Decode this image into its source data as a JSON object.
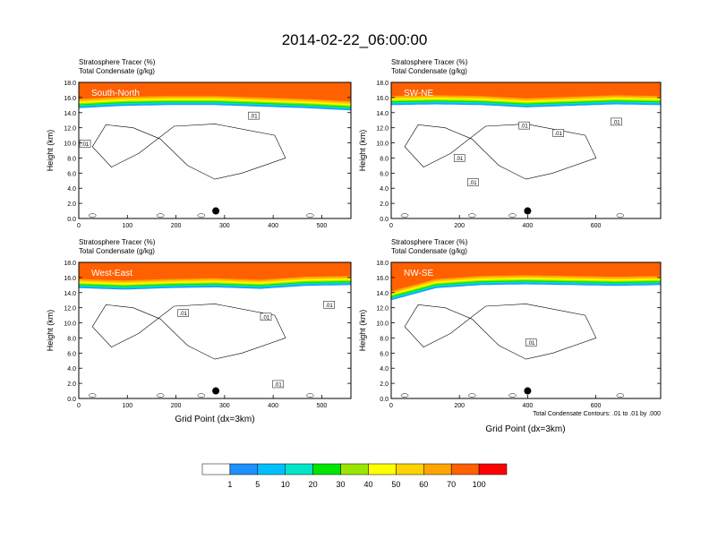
{
  "figure": {
    "title": "2014-02-22_06:00:00",
    "contour_note": "Total Condensate Contours: .01 to .01 by .000",
    "bottom_xlabel": "Grid Point (dx=3km)"
  },
  "chart_data": [
    {
      "type": "heatmap",
      "panel_label": "South-North",
      "line1": "Stratosphere Tracer   (%)",
      "line2": "Total Condensate   (g/kg)",
      "ylabel": "Height (km)",
      "xlabel": "",
      "xlim": [
        0,
        560
      ],
      "ylim": [
        0,
        18
      ],
      "xticks": [
        0,
        100,
        200,
        300,
        400,
        500
      ],
      "yticks": [
        "0.0",
        "2.0",
        "4.0",
        "6.0",
        "8.0",
        "10.0",
        "12.0",
        "14.0",
        "16.0",
        "18.0"
      ],
      "tracer_top_km": [
        14.6,
        14.9,
        15.0,
        15.0,
        14.8,
        14.6,
        14.3
      ],
      "contour_labels": [
        {
          "x": 13,
          "y": 9.9,
          "text": ".01"
        },
        {
          "x": 360,
          "y": 13.6,
          "text": ".01"
        }
      ],
      "marker": {
        "x": 282,
        "y": 1.0
      }
    },
    {
      "type": "heatmap",
      "panel_label": "SW-NE",
      "line1": "Stratosphere Tracer   (%)",
      "line2": "Total Condensate   (g/kg)",
      "ylabel": "Height (km)",
      "xlabel": "",
      "xlim": [
        0,
        790
      ],
      "ylim": [
        0,
        18
      ],
      "xticks": [
        0,
        200,
        400,
        600
      ],
      "yticks": [
        "0.0",
        "2.0",
        "4.0",
        "6.0",
        "8.0",
        "10.0",
        "12.0",
        "14.0",
        "16.0",
        "18.0"
      ],
      "tracer_top_km": [
        15.0,
        15.1,
        15.0,
        14.7,
        14.9,
        15.1,
        15.0
      ],
      "contour_labels": [
        {
          "x": 200,
          "y": 8.0,
          "text": ".01"
        },
        {
          "x": 240,
          "y": 4.8,
          "text": ".01"
        },
        {
          "x": 390,
          "y": 12.3,
          "text": ".01"
        },
        {
          "x": 490,
          "y": 11.3,
          "text": ".01"
        },
        {
          "x": 660,
          "y": 12.8,
          "text": ".01"
        }
      ],
      "marker": {
        "x": 400,
        "y": 1.0
      }
    },
    {
      "type": "heatmap",
      "panel_label": "West-East",
      "line1": "Stratosphere Tracer   (%)",
      "line2": "Total Condensate   (g/kg)",
      "ylabel": "Height (km)",
      "xlabel": "Grid Point (dx=3km)",
      "xlim": [
        0,
        560
      ],
      "ylim": [
        0,
        18
      ],
      "xticks": [
        0,
        100,
        200,
        300,
        400,
        500
      ],
      "yticks": [
        "0.0",
        "2.0",
        "4.0",
        "6.0",
        "8.0",
        "10.0",
        "12.0",
        "14.0",
        "16.0",
        "18.0"
      ],
      "tracer_top_km": [
        14.6,
        14.4,
        14.6,
        14.7,
        14.5,
        14.9,
        15.0
      ],
      "contour_labels": [
        {
          "x": 215,
          "y": 11.3,
          "text": ".01"
        },
        {
          "x": 385,
          "y": 10.8,
          "text": ".01"
        },
        {
          "x": 515,
          "y": 12.4,
          "text": ".01"
        },
        {
          "x": 410,
          "y": 1.9,
          "text": ".01"
        }
      ],
      "marker": {
        "x": 282,
        "y": 1.0
      }
    },
    {
      "type": "heatmap",
      "panel_label": "NW-SE",
      "line1": "Stratosphere Tracer   (%)",
      "line2": "Total Condensate   (g/kg)",
      "ylabel": "Height (km)",
      "xlabel": "",
      "xlim": [
        0,
        790
      ],
      "ylim": [
        0,
        18
      ],
      "xticks": [
        0,
        200,
        400,
        600
      ],
      "yticks": [
        "0.0",
        "2.0",
        "4.0",
        "6.0",
        "8.0",
        "10.0",
        "12.0",
        "14.0",
        "16.0",
        "18.0"
      ],
      "tracer_top_km": [
        13.0,
        14.6,
        15.0,
        15.1,
        15.0,
        14.9,
        15.0
      ],
      "contour_labels": [
        {
          "x": 410,
          "y": 7.4,
          "text": ".01"
        }
      ],
      "marker": {
        "x": 400,
        "y": 1.0
      }
    }
  ],
  "colorbar": {
    "levels": [
      "1",
      "5",
      "10",
      "20",
      "30",
      "40",
      "50",
      "60",
      "70",
      "100"
    ],
    "colors": [
      "#ffffff",
      "#1e90ff",
      "#00bfff",
      "#00e5c8",
      "#00e600",
      "#9ae600",
      "#ffff00",
      "#ffd200",
      "#ffa500",
      "#ff6000",
      "#ff0000"
    ]
  }
}
